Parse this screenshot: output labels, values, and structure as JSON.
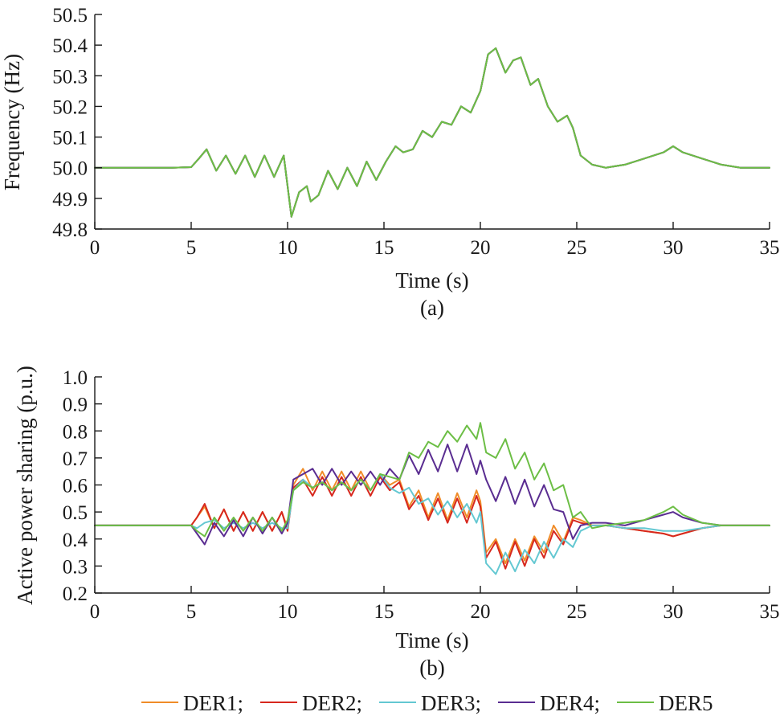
{
  "chart_data": [
    {
      "type": "line",
      "panel_label": "(a)",
      "title": "",
      "xlabel": "Time (s)",
      "ylabel": "Frequency (Hz)",
      "xlim": [
        0,
        35
      ],
      "ylim": [
        49.8,
        50.5
      ],
      "xticks": [
        0,
        5,
        10,
        15,
        20,
        25,
        30,
        35
      ],
      "yticks": [
        49.8,
        49.9,
        50.0,
        50.1,
        50.2,
        50.3,
        50.4,
        50.5
      ],
      "x": [
        0,
        2,
        4,
        5,
        5.4,
        5.8,
        6.3,
        6.8,
        7.3,
        7.8,
        8.3,
        8.8,
        9.3,
        9.8,
        10.2,
        10.6,
        11.0,
        11.2,
        11.6,
        12.1,
        12.6,
        13.1,
        13.6,
        14.1,
        14.6,
        15.1,
        15.6,
        16.0,
        16.5,
        17.0,
        17.5,
        18.0,
        18.5,
        19.0,
        19.5,
        20.0,
        20.4,
        20.8,
        21.3,
        21.7,
        22.1,
        22.6,
        23.0,
        23.5,
        24.0,
        24.5,
        24.8,
        25.2,
        25.8,
        26.5,
        27.5,
        28.5,
        29.5,
        30.0,
        30.5,
        31.5,
        32.5,
        33.5,
        35
      ],
      "series": [
        {
          "name": "DER1",
          "color": "#f08c28",
          "values": [
            50.0,
            50.0,
            50.0,
            50.002,
            50.03,
            50.06,
            49.99,
            50.04,
            49.98,
            50.04,
            49.97,
            50.04,
            49.97,
            50.04,
            49.84,
            49.92,
            49.94,
            49.89,
            49.91,
            49.99,
            49.93,
            50.0,
            49.94,
            50.02,
            49.96,
            50.02,
            50.07,
            50.05,
            50.06,
            50.12,
            50.1,
            50.15,
            50.14,
            50.2,
            50.18,
            50.25,
            50.37,
            50.39,
            50.31,
            50.35,
            50.36,
            50.27,
            50.29,
            50.2,
            50.15,
            50.17,
            50.13,
            50.04,
            50.01,
            50.0,
            50.01,
            50.03,
            50.05,
            50.07,
            50.05,
            50.03,
            50.01,
            50.0,
            50.0
          ]
        },
        {
          "name": "DER2",
          "color": "#d7281e",
          "values": [
            50.0,
            50.0,
            50.0,
            50.002,
            50.03,
            50.06,
            49.99,
            50.04,
            49.98,
            50.04,
            49.97,
            50.04,
            49.97,
            50.04,
            49.84,
            49.92,
            49.94,
            49.89,
            49.91,
            49.99,
            49.93,
            50.0,
            49.94,
            50.02,
            49.96,
            50.02,
            50.07,
            50.05,
            50.06,
            50.12,
            50.1,
            50.15,
            50.14,
            50.2,
            50.18,
            50.25,
            50.37,
            50.39,
            50.31,
            50.35,
            50.36,
            50.27,
            50.29,
            50.2,
            50.15,
            50.17,
            50.13,
            50.04,
            50.01,
            50.0,
            50.01,
            50.03,
            50.05,
            50.07,
            50.05,
            50.03,
            50.01,
            50.0,
            50.0
          ]
        },
        {
          "name": "DER3",
          "color": "#64c8d2",
          "values": [
            50.0,
            50.0,
            50.0,
            50.002,
            50.03,
            50.06,
            49.99,
            50.04,
            49.98,
            50.04,
            49.97,
            50.04,
            49.97,
            50.04,
            49.84,
            49.92,
            49.94,
            49.89,
            49.91,
            49.99,
            49.93,
            50.0,
            49.94,
            50.02,
            49.96,
            50.02,
            50.07,
            50.05,
            50.06,
            50.12,
            50.1,
            50.15,
            50.14,
            50.2,
            50.18,
            50.25,
            50.37,
            50.39,
            50.31,
            50.35,
            50.36,
            50.27,
            50.29,
            50.2,
            50.15,
            50.17,
            50.13,
            50.04,
            50.01,
            50.0,
            50.01,
            50.03,
            50.05,
            50.07,
            50.05,
            50.03,
            50.01,
            50.0,
            50.0
          ]
        },
        {
          "name": "DER4",
          "color": "#5a2d91",
          "values": [
            50.0,
            50.0,
            50.0,
            50.002,
            50.03,
            50.06,
            49.99,
            50.04,
            49.98,
            50.04,
            49.97,
            50.04,
            49.97,
            50.04,
            49.84,
            49.92,
            49.94,
            49.89,
            49.91,
            49.99,
            49.93,
            50.0,
            49.94,
            50.02,
            49.96,
            50.02,
            50.07,
            50.05,
            50.06,
            50.12,
            50.1,
            50.15,
            50.14,
            50.2,
            50.18,
            50.25,
            50.37,
            50.39,
            50.31,
            50.35,
            50.36,
            50.27,
            50.29,
            50.2,
            50.15,
            50.17,
            50.13,
            50.04,
            50.01,
            50.0,
            50.01,
            50.03,
            50.05,
            50.07,
            50.05,
            50.03,
            50.01,
            50.0,
            50.0
          ]
        },
        {
          "name": "DER5",
          "color": "#6cbe45",
          "values": [
            50.0,
            50.0,
            50.0,
            50.002,
            50.03,
            50.06,
            49.99,
            50.04,
            49.98,
            50.04,
            49.97,
            50.04,
            49.97,
            50.04,
            49.84,
            49.92,
            49.94,
            49.89,
            49.91,
            49.99,
            49.93,
            50.0,
            49.94,
            50.02,
            49.96,
            50.02,
            50.07,
            50.05,
            50.06,
            50.12,
            50.1,
            50.15,
            50.14,
            50.2,
            50.18,
            50.25,
            50.37,
            50.39,
            50.31,
            50.35,
            50.36,
            50.27,
            50.29,
            50.2,
            50.15,
            50.17,
            50.13,
            50.04,
            50.01,
            50.0,
            50.01,
            50.03,
            50.05,
            50.07,
            50.05,
            50.03,
            50.01,
            50.0,
            50.0
          ]
        }
      ]
    },
    {
      "type": "line",
      "panel_label": "(b)",
      "title": "",
      "xlabel": "Time (s)",
      "ylabel": "Active power sharing (p.u.)",
      "xlim": [
        0,
        35
      ],
      "ylim": [
        0.2,
        1.0
      ],
      "xticks": [
        0,
        5,
        10,
        15,
        20,
        25,
        30,
        35
      ],
      "yticks": [
        0.2,
        0.3,
        0.4,
        0.5,
        0.6,
        0.7,
        0.8,
        0.9,
        1.0
      ],
      "x": [
        0,
        2,
        4,
        5,
        5.3,
        5.7,
        6.2,
        6.7,
        7.2,
        7.7,
        8.2,
        8.7,
        9.2,
        9.7,
        10.0,
        10.3,
        10.8,
        11.3,
        11.8,
        12.3,
        12.8,
        13.3,
        13.8,
        14.3,
        14.8,
        15.3,
        15.8,
        16.3,
        16.8,
        17.3,
        17.8,
        18.3,
        18.8,
        19.3,
        19.8,
        20.0,
        20.3,
        20.8,
        21.3,
        21.8,
        22.3,
        22.8,
        23.3,
        23.8,
        24.3,
        24.8,
        25.2,
        25.8,
        26.5,
        27.5,
        28.5,
        29.5,
        30.0,
        30.5,
        31.5,
        32.5,
        33.5,
        35
      ],
      "series": [
        {
          "name": "DER1",
          "color": "#f08c28",
          "values": [
            0.45,
            0.45,
            0.45,
            0.45,
            0.48,
            0.52,
            0.44,
            0.51,
            0.43,
            0.5,
            0.43,
            0.5,
            0.43,
            0.5,
            0.44,
            0.6,
            0.66,
            0.58,
            0.65,
            0.58,
            0.65,
            0.58,
            0.65,
            0.58,
            0.64,
            0.6,
            0.62,
            0.52,
            0.58,
            0.48,
            0.57,
            0.47,
            0.57,
            0.48,
            0.58,
            0.54,
            0.35,
            0.4,
            0.31,
            0.4,
            0.32,
            0.41,
            0.35,
            0.45,
            0.39,
            0.48,
            0.47,
            0.45,
            0.45,
            0.44,
            0.43,
            0.42,
            0.41,
            0.42,
            0.44,
            0.45,
            0.45,
            0.45
          ]
        },
        {
          "name": "DER2",
          "color": "#d7281e",
          "values": [
            0.45,
            0.45,
            0.45,
            0.45,
            0.48,
            0.53,
            0.44,
            0.51,
            0.43,
            0.5,
            0.43,
            0.5,
            0.43,
            0.5,
            0.43,
            0.59,
            0.62,
            0.56,
            0.63,
            0.56,
            0.63,
            0.56,
            0.63,
            0.56,
            0.63,
            0.58,
            0.61,
            0.51,
            0.56,
            0.47,
            0.55,
            0.46,
            0.55,
            0.46,
            0.56,
            0.52,
            0.33,
            0.39,
            0.29,
            0.39,
            0.3,
            0.4,
            0.33,
            0.43,
            0.38,
            0.47,
            0.46,
            0.45,
            0.45,
            0.44,
            0.43,
            0.42,
            0.41,
            0.42,
            0.44,
            0.45,
            0.45,
            0.45
          ]
        },
        {
          "name": "DER3",
          "color": "#64c8d2",
          "values": [
            0.45,
            0.45,
            0.45,
            0.45,
            0.44,
            0.46,
            0.47,
            0.44,
            0.46,
            0.44,
            0.46,
            0.44,
            0.46,
            0.44,
            0.44,
            0.58,
            0.62,
            0.59,
            0.61,
            0.58,
            0.61,
            0.58,
            0.62,
            0.58,
            0.64,
            0.59,
            0.57,
            0.59,
            0.53,
            0.55,
            0.49,
            0.54,
            0.48,
            0.53,
            0.46,
            0.5,
            0.31,
            0.27,
            0.35,
            0.28,
            0.36,
            0.31,
            0.39,
            0.33,
            0.4,
            0.37,
            0.43,
            0.45,
            0.45,
            0.44,
            0.44,
            0.43,
            0.43,
            0.43,
            0.44,
            0.45,
            0.45,
            0.45
          ]
        },
        {
          "name": "DER4",
          "color": "#5a2d91",
          "values": [
            0.45,
            0.45,
            0.45,
            0.45,
            0.42,
            0.38,
            0.46,
            0.41,
            0.47,
            0.41,
            0.48,
            0.42,
            0.48,
            0.42,
            0.46,
            0.62,
            0.64,
            0.66,
            0.6,
            0.66,
            0.6,
            0.65,
            0.6,
            0.65,
            0.6,
            0.66,
            0.62,
            0.71,
            0.64,
            0.73,
            0.65,
            0.75,
            0.65,
            0.75,
            0.64,
            0.69,
            0.62,
            0.54,
            0.63,
            0.53,
            0.62,
            0.52,
            0.6,
            0.51,
            0.5,
            0.4,
            0.45,
            0.46,
            0.46,
            0.45,
            0.47,
            0.49,
            0.5,
            0.48,
            0.46,
            0.45,
            0.45,
            0.45
          ]
        },
        {
          "name": "DER5",
          "color": "#6cbe45",
          "values": [
            0.45,
            0.45,
            0.45,
            0.45,
            0.43,
            0.41,
            0.48,
            0.43,
            0.48,
            0.43,
            0.48,
            0.43,
            0.48,
            0.43,
            0.47,
            0.58,
            0.61,
            0.59,
            0.61,
            0.58,
            0.61,
            0.58,
            0.62,
            0.58,
            0.64,
            0.63,
            0.62,
            0.72,
            0.7,
            0.76,
            0.74,
            0.8,
            0.76,
            0.82,
            0.77,
            0.83,
            0.72,
            0.7,
            0.77,
            0.66,
            0.72,
            0.62,
            0.68,
            0.58,
            0.6,
            0.48,
            0.5,
            0.44,
            0.45,
            0.46,
            0.47,
            0.5,
            0.52,
            0.49,
            0.46,
            0.45,
            0.45,
            0.45
          ]
        }
      ]
    }
  ],
  "legend": {
    "items": [
      {
        "label": "DER1;",
        "color": "#f08c28"
      },
      {
        "label": "DER2;",
        "color": "#d7281e"
      },
      {
        "label": "DER3;",
        "color": "#64c8d2"
      },
      {
        "label": "DER4;",
        "color": "#5a2d91"
      },
      {
        "label": "DER5",
        "color": "#6cbe45"
      }
    ]
  }
}
